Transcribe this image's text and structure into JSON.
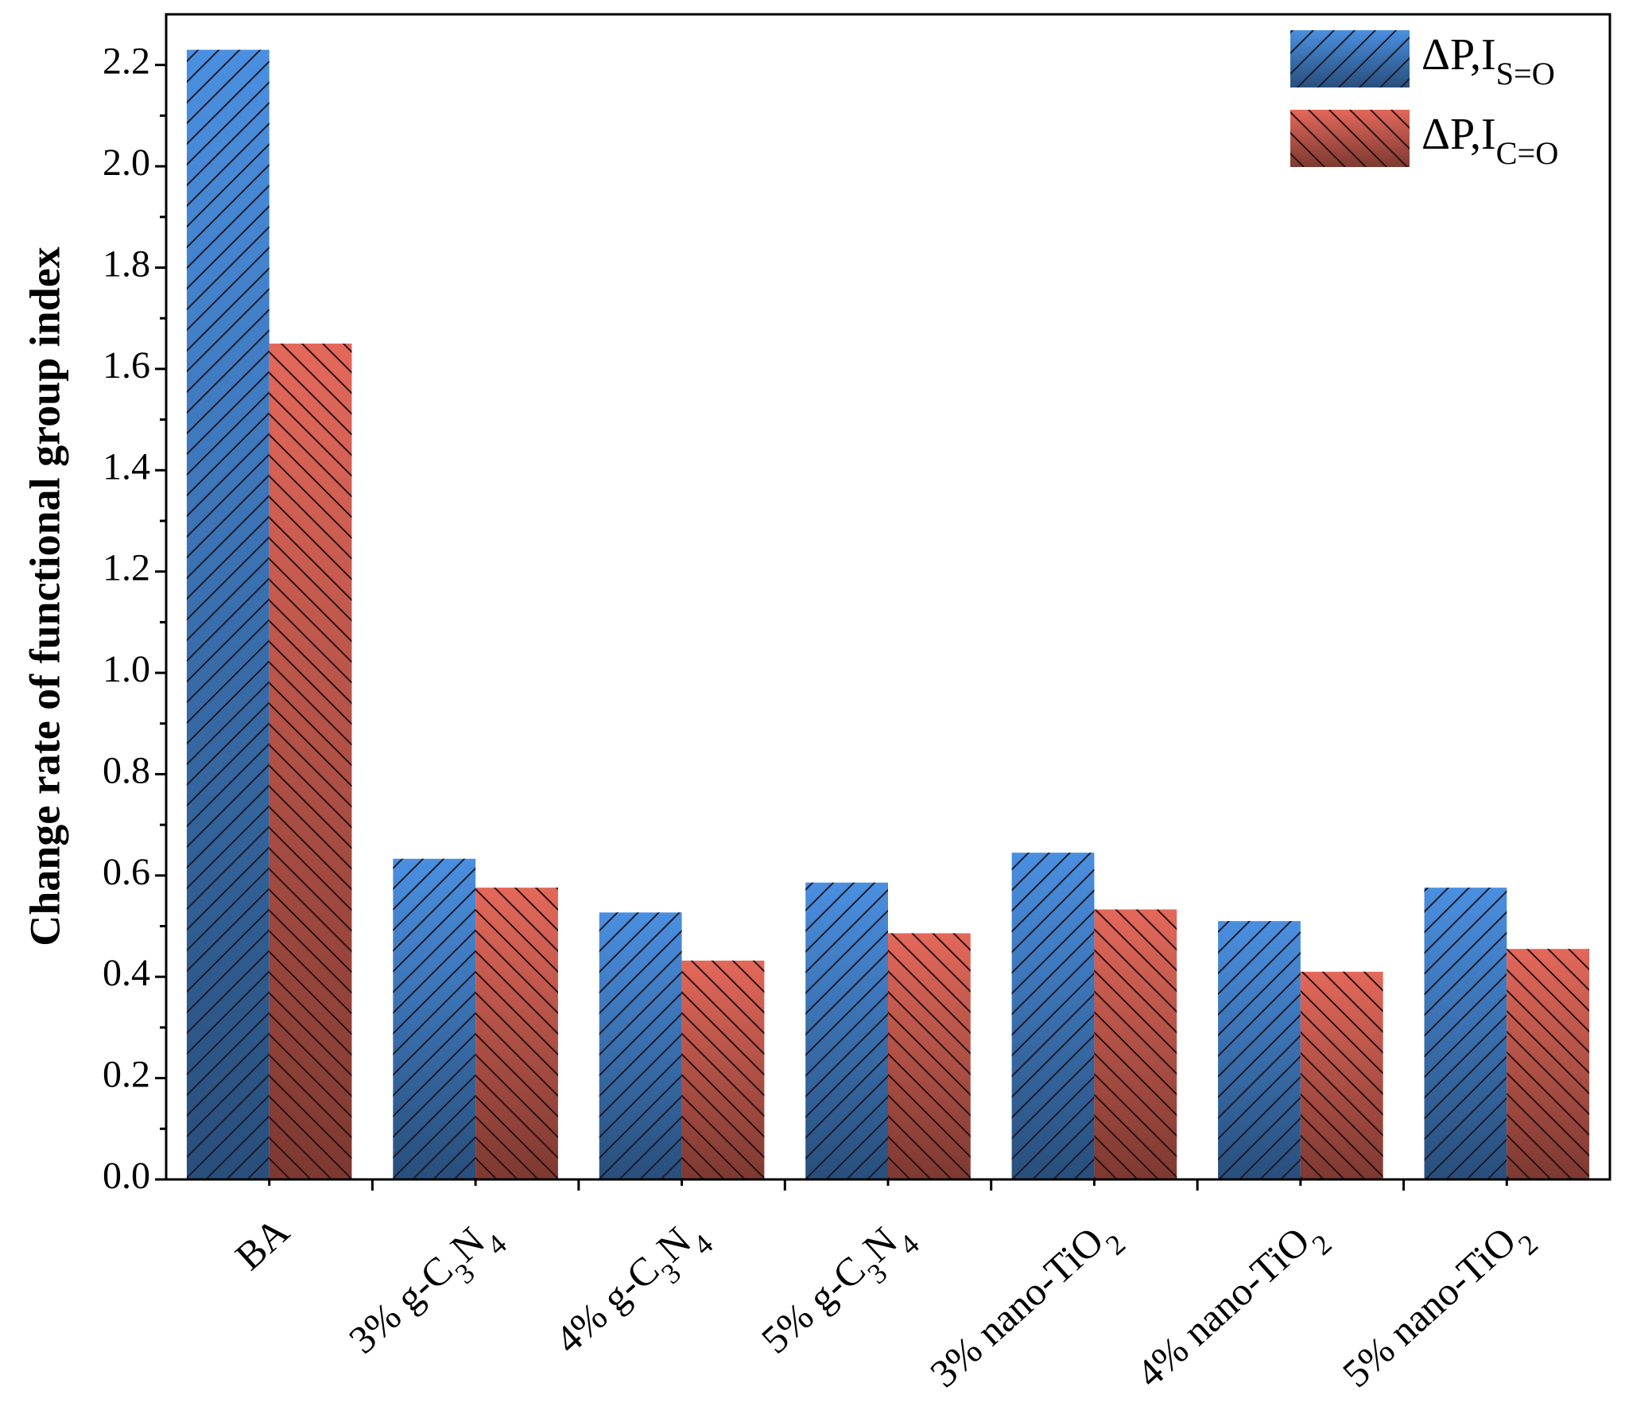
{
  "chart_data": {
    "type": "bar",
    "y_label": "Change rate of functional group index",
    "categories": [
      "BA",
      "3% g-C3N4",
      "4% g-C3N4",
      "5% g-C3N4",
      "3% nano-TiO2",
      "4% nano-TiO2",
      "5% nano-TiO2"
    ],
    "series": [
      {
        "name": "ΔP,IS=O",
        "color": "#4a8fe0",
        "hatch": "/",
        "values": [
          2.23,
          0.633,
          0.527,
          0.586,
          0.645,
          0.51,
          0.576
        ]
      },
      {
        "name": "ΔP,IC=O",
        "color": "#e3685a",
        "hatch": "\\",
        "values": [
          1.65,
          0.576,
          0.432,
          0.486,
          0.533,
          0.41,
          0.455
        ]
      }
    ],
    "ylim": [
      0,
      2.3
    ],
    "yticks": [
      {
        "value": 0,
        "label": "0.0"
      },
      0.2,
      0.4,
      0.6,
      0.8,
      {
        "value": 1,
        "label": "1.0"
      },
      1.2,
      1.4,
      1.6,
      1.8,
      {
        "value": 2,
        "label": "2.0"
      },
      2.2
    ],
    "legend": "upper right"
  }
}
